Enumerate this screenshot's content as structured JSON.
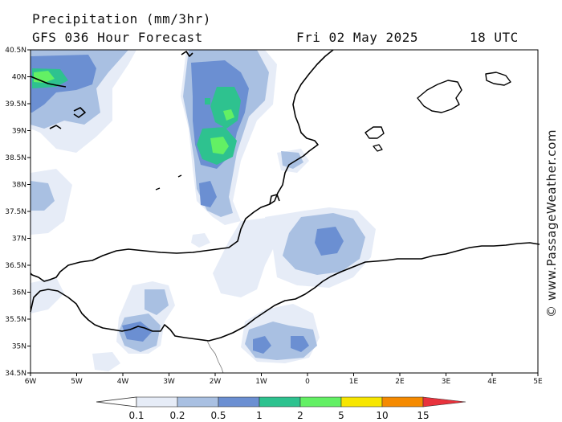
{
  "header": {
    "product": "Precipitation (mm/3hr)",
    "model": "GFS 036 Hour Forecast",
    "date": "Fri 02 May 2025",
    "time": "18 UTC"
  },
  "axes": {
    "lat_labels": [
      "40.5N",
      "40N",
      "39.5N",
      "39N",
      "38.5N",
      "38N",
      "37.5N",
      "37N",
      "36.5N",
      "36N",
      "35.5N",
      "35N",
      "34.5N"
    ],
    "lon_labels": [
      "6W",
      "5W",
      "4W",
      "3W",
      "2W",
      "1W",
      "0",
      "1E",
      "2E",
      "3E",
      "4E",
      "5E"
    ]
  },
  "legend": {
    "values": [
      "0.1",
      "0.2",
      "0.5",
      "1",
      "2",
      "5",
      "10",
      "15"
    ],
    "colors": [
      "#e6ecf7",
      "#a9c0e2",
      "#6b8fd2",
      "#2ec28f",
      "#63f064",
      "#f7e600",
      "#f58a00",
      "#e8323c"
    ]
  },
  "watermark": "© www.PassageWeather.com"
}
